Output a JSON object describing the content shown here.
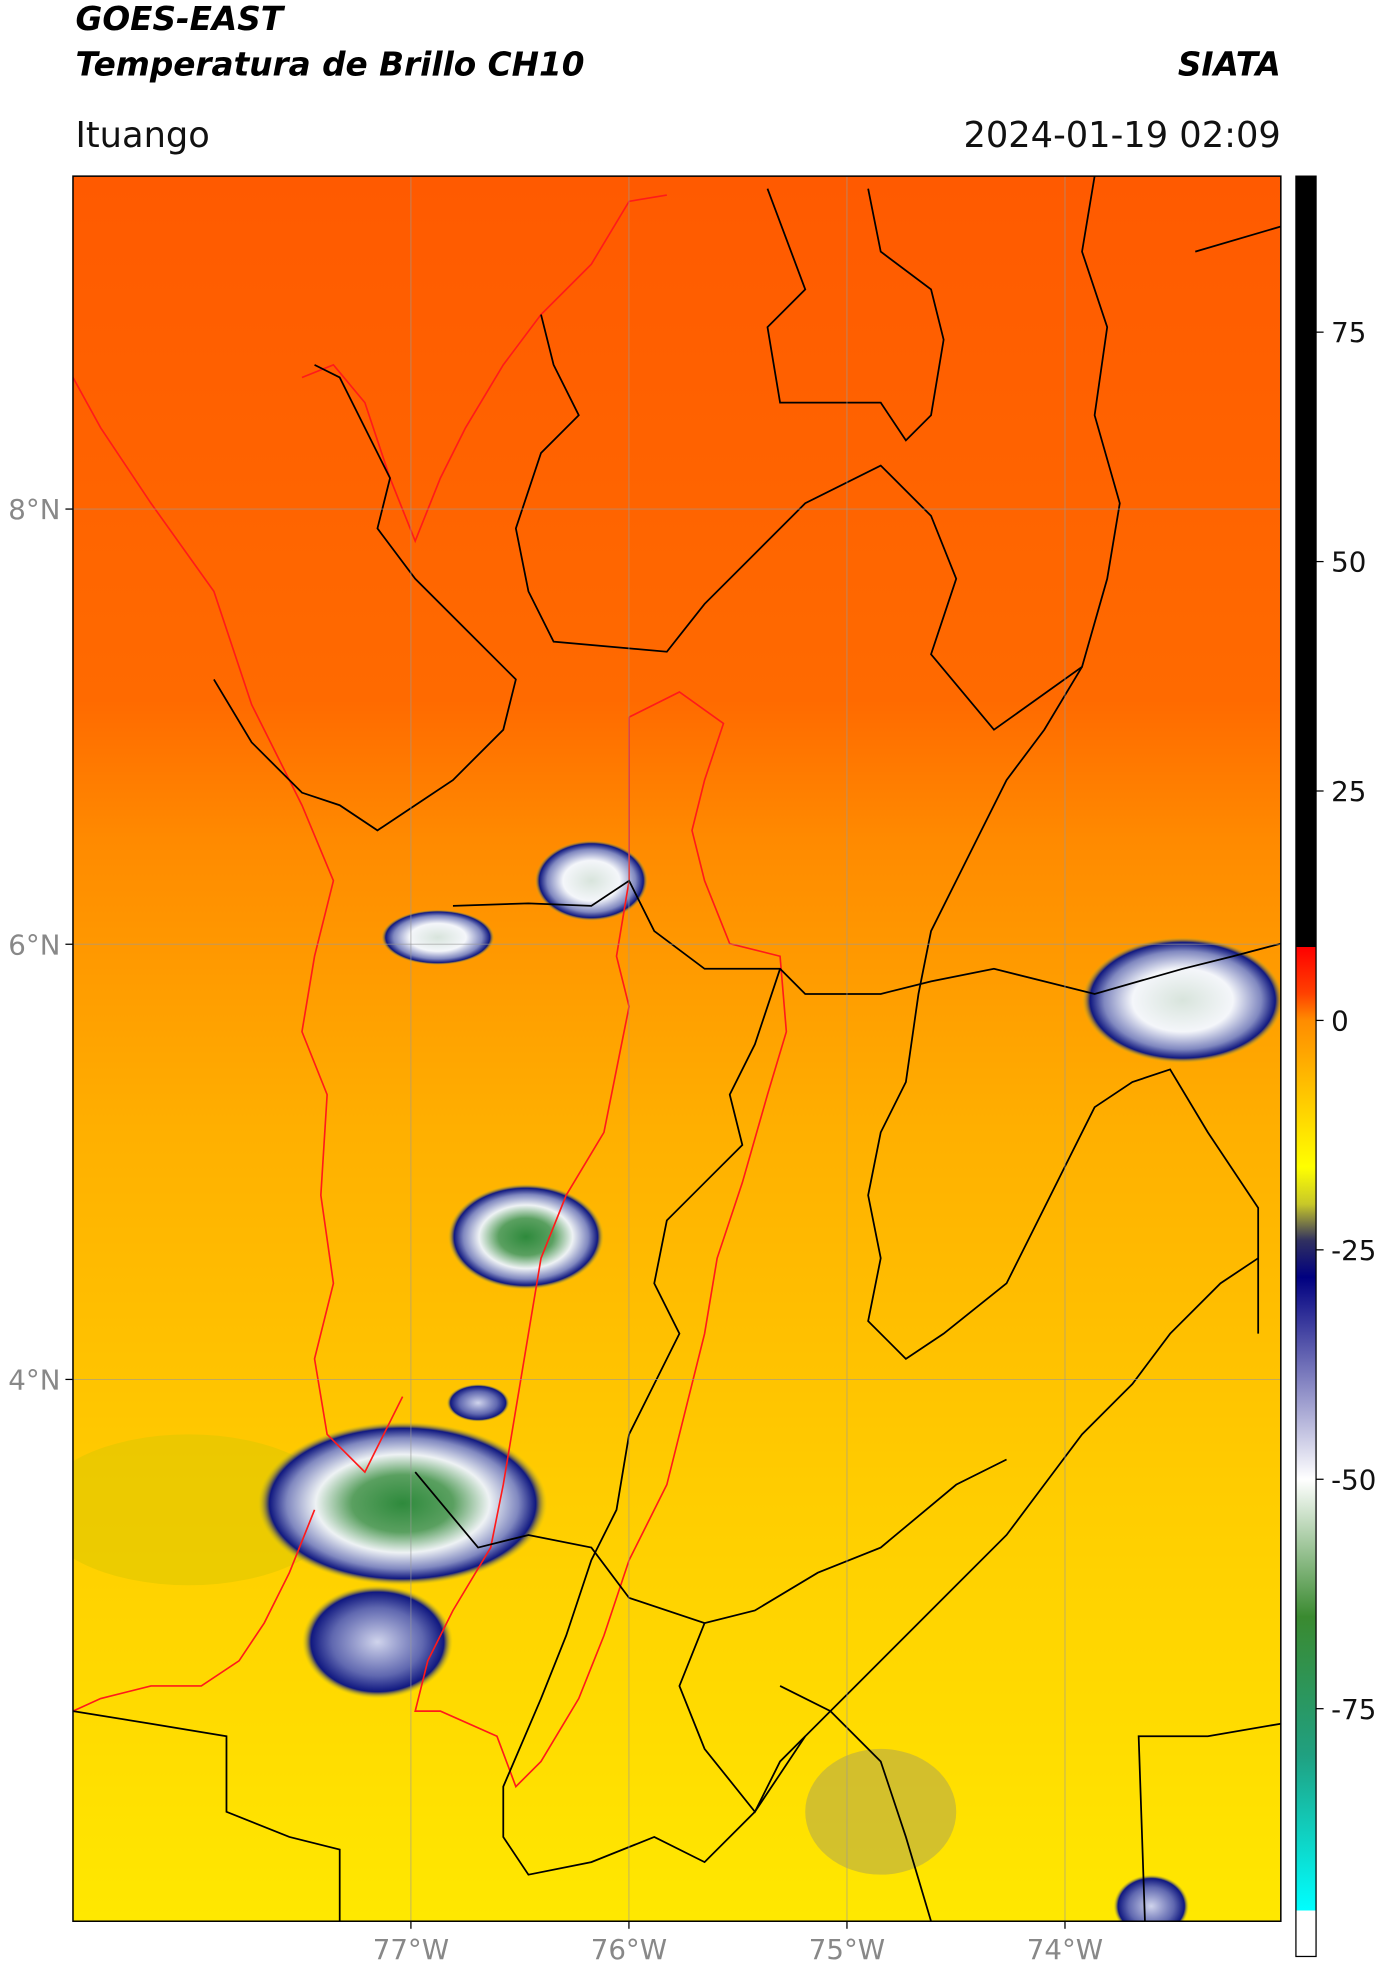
{
  "header": {
    "satellite": "GOES-EAST",
    "product": "Temperatura de Brillo CH10",
    "agency": "SIATA",
    "region": "Ituango",
    "datetime": "2024-01-19 02:09"
  },
  "map": {
    "xlim": [
      -78.55,
      -73.01
    ],
    "ylim": [
      1.51,
      9.53
    ],
    "xticks": [
      {
        "value": -77,
        "label": "77°W"
      },
      {
        "value": -76,
        "label": "76°W"
      },
      {
        "value": -75,
        "label": "75°W"
      },
      {
        "value": -74,
        "label": "74°W"
      }
    ],
    "yticks": [
      {
        "value": 8,
        "label": "8°N"
      },
      {
        "value": 6,
        "label": "6°N"
      },
      {
        "value": 4,
        "label": "4°N"
      }
    ],
    "grid": true
  },
  "colorbar": {
    "lim": [
      -102,
      92
    ],
    "ticks": [
      75,
      50,
      25,
      0,
      -25,
      -50,
      -75
    ],
    "stops": [
      {
        "value": 92,
        "color": "#000000"
      },
      {
        "value": 8,
        "color": "#000000"
      },
      {
        "value": 8,
        "color": "#ff0000"
      },
      {
        "value": 3,
        "color": "#ff4000"
      },
      {
        "value": 0,
        "color": "#ff8c00"
      },
      {
        "value": -16,
        "color": "#ffff00"
      },
      {
        "value": -20,
        "color": "#c8c828"
      },
      {
        "value": -24,
        "color": "#303060"
      },
      {
        "value": -28,
        "color": "#000080"
      },
      {
        "value": -50,
        "color": "#ffffff"
      },
      {
        "value": -65,
        "color": "#3a8a30"
      },
      {
        "value": -80,
        "color": "#20a080"
      },
      {
        "value": -97,
        "color": "#00ffff"
      },
      {
        "value": -97,
        "color": "#ffffff"
      },
      {
        "value": -102,
        "color": "#ffffff"
      }
    ]
  }
}
